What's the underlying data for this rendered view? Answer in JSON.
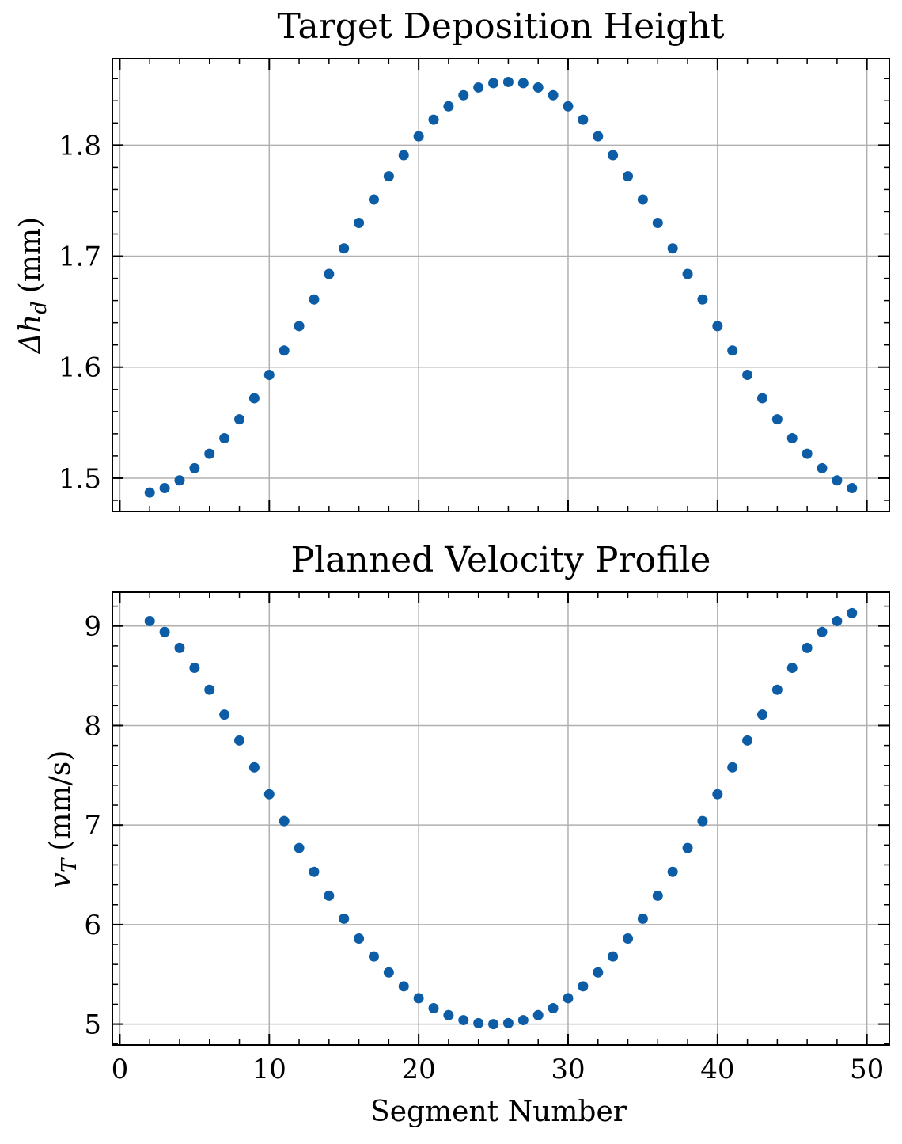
{
  "chart_data": [
    {
      "type": "scatter",
      "title": "Target Deposition Height",
      "xlabel": "",
      "ylabel": "Δh_d (mm)",
      "ylabel_parts": {
        "symbol": "Δh",
        "subscript": "d",
        "unit": "(mm)"
      },
      "xlim": [
        -0.5,
        51.5
      ],
      "ylim": [
        1.47,
        1.878
      ],
      "xticks": [
        0,
        10,
        20,
        30,
        40,
        50
      ],
      "yticks": [
        1.5,
        1.6,
        1.7,
        1.8
      ],
      "ytick_labels": [
        "1.5",
        "1.6",
        "1.7",
        "1.8"
      ],
      "xtick_labels_visible": false,
      "grid": true,
      "marker_color": "#0C5DA5",
      "series": [
        {
          "x": [
            2,
            3,
            4,
            5,
            6,
            7,
            8,
            9,
            10,
            11,
            12,
            13,
            14,
            15,
            16,
            17,
            18,
            19,
            20,
            21,
            22,
            23,
            24,
            25,
            26,
            27,
            28,
            29,
            30,
            31,
            32,
            33,
            34,
            35,
            36,
            37,
            38,
            39,
            40,
            41,
            42,
            43,
            44,
            45,
            46,
            47,
            48,
            49
          ],
          "values": [
            1.487,
            1.491,
            1.498,
            1.509,
            1.522,
            1.536,
            1.553,
            1.572,
            1.593,
            1.615,
            1.637,
            1.661,
            1.684,
            1.707,
            1.73,
            1.751,
            1.772,
            1.791,
            1.808,
            1.823,
            1.835,
            1.845,
            1.852,
            1.856,
            1.857,
            1.856,
            1.852,
            1.845,
            1.835,
            1.823,
            1.808,
            1.791,
            1.772,
            1.751,
            1.73,
            1.707,
            1.684,
            1.661,
            1.637,
            1.615,
            1.593,
            1.572,
            1.553,
            1.536,
            1.522,
            1.509,
            1.498,
            1.491
          ]
        }
      ]
    },
    {
      "type": "scatter",
      "title": "Planned Velocity Profile",
      "xlabel": "Segment Number",
      "ylabel": "v_T (mm/s)",
      "ylabel_parts": {
        "symbol": "v",
        "subscript": "T",
        "unit": "(mm/s)"
      },
      "xlim": [
        -0.5,
        51.5
      ],
      "ylim": [
        4.79,
        9.34
      ],
      "xticks": [
        0,
        10,
        20,
        30,
        40,
        50
      ],
      "xtick_labels": [
        "0",
        "10",
        "20",
        "30",
        "40",
        "50"
      ],
      "yticks": [
        5,
        6,
        7,
        8,
        9
      ],
      "ytick_labels": [
        "5",
        "6",
        "7",
        "8",
        "9"
      ],
      "grid": true,
      "marker_color": "#0C5DA5",
      "series": [
        {
          "x": [
            2,
            3,
            4,
            5,
            6,
            7,
            8,
            9,
            10,
            11,
            12,
            13,
            14,
            15,
            16,
            17,
            18,
            19,
            20,
            21,
            22,
            23,
            24,
            25,
            26,
            27,
            28,
            29,
            30,
            31,
            32,
            33,
            34,
            35,
            36,
            37,
            38,
            39,
            40,
            41,
            42,
            43,
            44,
            45,
            46,
            47,
            48,
            49
          ],
          "values": [
            9.05,
            8.94,
            8.78,
            8.58,
            8.36,
            8.11,
            7.85,
            7.58,
            7.31,
            7.04,
            6.77,
            6.53,
            6.29,
            6.06,
            5.86,
            5.68,
            5.52,
            5.38,
            5.26,
            5.16,
            5.09,
            5.04,
            5.01,
            5.0,
            5.01,
            5.04,
            5.09,
            5.16,
            5.26,
            5.38,
            5.52,
            5.68,
            5.86,
            6.06,
            6.29,
            6.53,
            6.77,
            7.04,
            7.31,
            7.58,
            7.85,
            8.11,
            8.36,
            8.58,
            8.78,
            8.94,
            9.05,
            9.13
          ]
        }
      ]
    }
  ]
}
